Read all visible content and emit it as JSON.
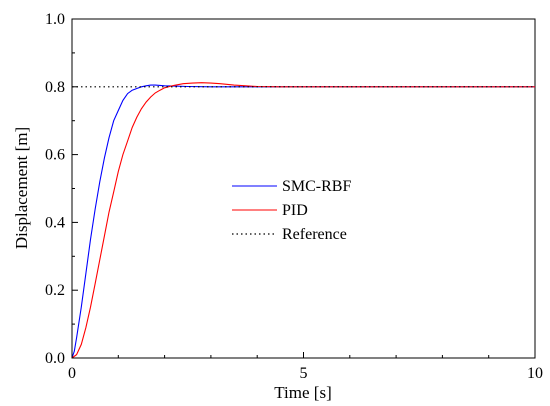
{
  "chart_data": {
    "type": "line",
    "xlabel": "Time [s]",
    "ylabel": "Displacement [m]",
    "xlim": [
      0,
      10
    ],
    "ylim": [
      0,
      1.0
    ],
    "x_ticks": [
      0,
      5,
      10
    ],
    "x_tick_labels": [
      "0",
      "5",
      "10"
    ],
    "y_ticks": [
      0,
      0.2,
      0.4,
      0.6,
      0.8,
      1.0
    ],
    "y_tick_labels": [
      "0.0",
      "0.2",
      "0.4",
      "0.6",
      "0.8",
      "1.0"
    ],
    "grid": false,
    "legend_position": "center",
    "series": [
      {
        "name": "SMC-RBF",
        "color": "#0000ff",
        "style": "solid",
        "x": [
          0,
          0.05,
          0.1,
          0.2,
          0.3,
          0.4,
          0.5,
          0.6,
          0.7,
          0.8,
          0.9,
          1.0,
          1.1,
          1.2,
          1.3,
          1.4,
          1.5,
          1.6,
          1.7,
          1.8,
          1.9,
          2.0,
          2.2,
          2.5,
          3.0,
          3.5,
          4.0,
          5.0,
          6.0,
          8.0,
          10.0
        ],
        "y": [
          0,
          0.02,
          0.06,
          0.15,
          0.25,
          0.35,
          0.44,
          0.52,
          0.59,
          0.65,
          0.7,
          0.73,
          0.76,
          0.78,
          0.79,
          0.795,
          0.8,
          0.803,
          0.805,
          0.805,
          0.804,
          0.803,
          0.802,
          0.801,
          0.8,
          0.8,
          0.8,
          0.8,
          0.8,
          0.8,
          0.8
        ]
      },
      {
        "name": "PID",
        "color": "#ff0000",
        "style": "solid",
        "x": [
          0,
          0.1,
          0.2,
          0.3,
          0.4,
          0.5,
          0.6,
          0.7,
          0.8,
          0.9,
          1.0,
          1.1,
          1.2,
          1.3,
          1.4,
          1.5,
          1.6,
          1.7,
          1.8,
          1.9,
          2.0,
          2.2,
          2.4,
          2.6,
          2.8,
          3.0,
          3.2,
          3.5,
          4.0,
          4.5,
          5.0,
          6.0,
          8.0,
          10.0
        ],
        "y": [
          0,
          0.01,
          0.04,
          0.09,
          0.15,
          0.22,
          0.29,
          0.36,
          0.43,
          0.49,
          0.55,
          0.6,
          0.64,
          0.68,
          0.71,
          0.735,
          0.755,
          0.77,
          0.782,
          0.79,
          0.797,
          0.804,
          0.809,
          0.811,
          0.812,
          0.811,
          0.809,
          0.805,
          0.801,
          0.8,
          0.8,
          0.8,
          0.8,
          0.8
        ]
      },
      {
        "name": "Reference",
        "color": "#000000",
        "style": "dotted",
        "x": [
          0,
          10
        ],
        "y": [
          0.8,
          0.8
        ]
      }
    ]
  }
}
